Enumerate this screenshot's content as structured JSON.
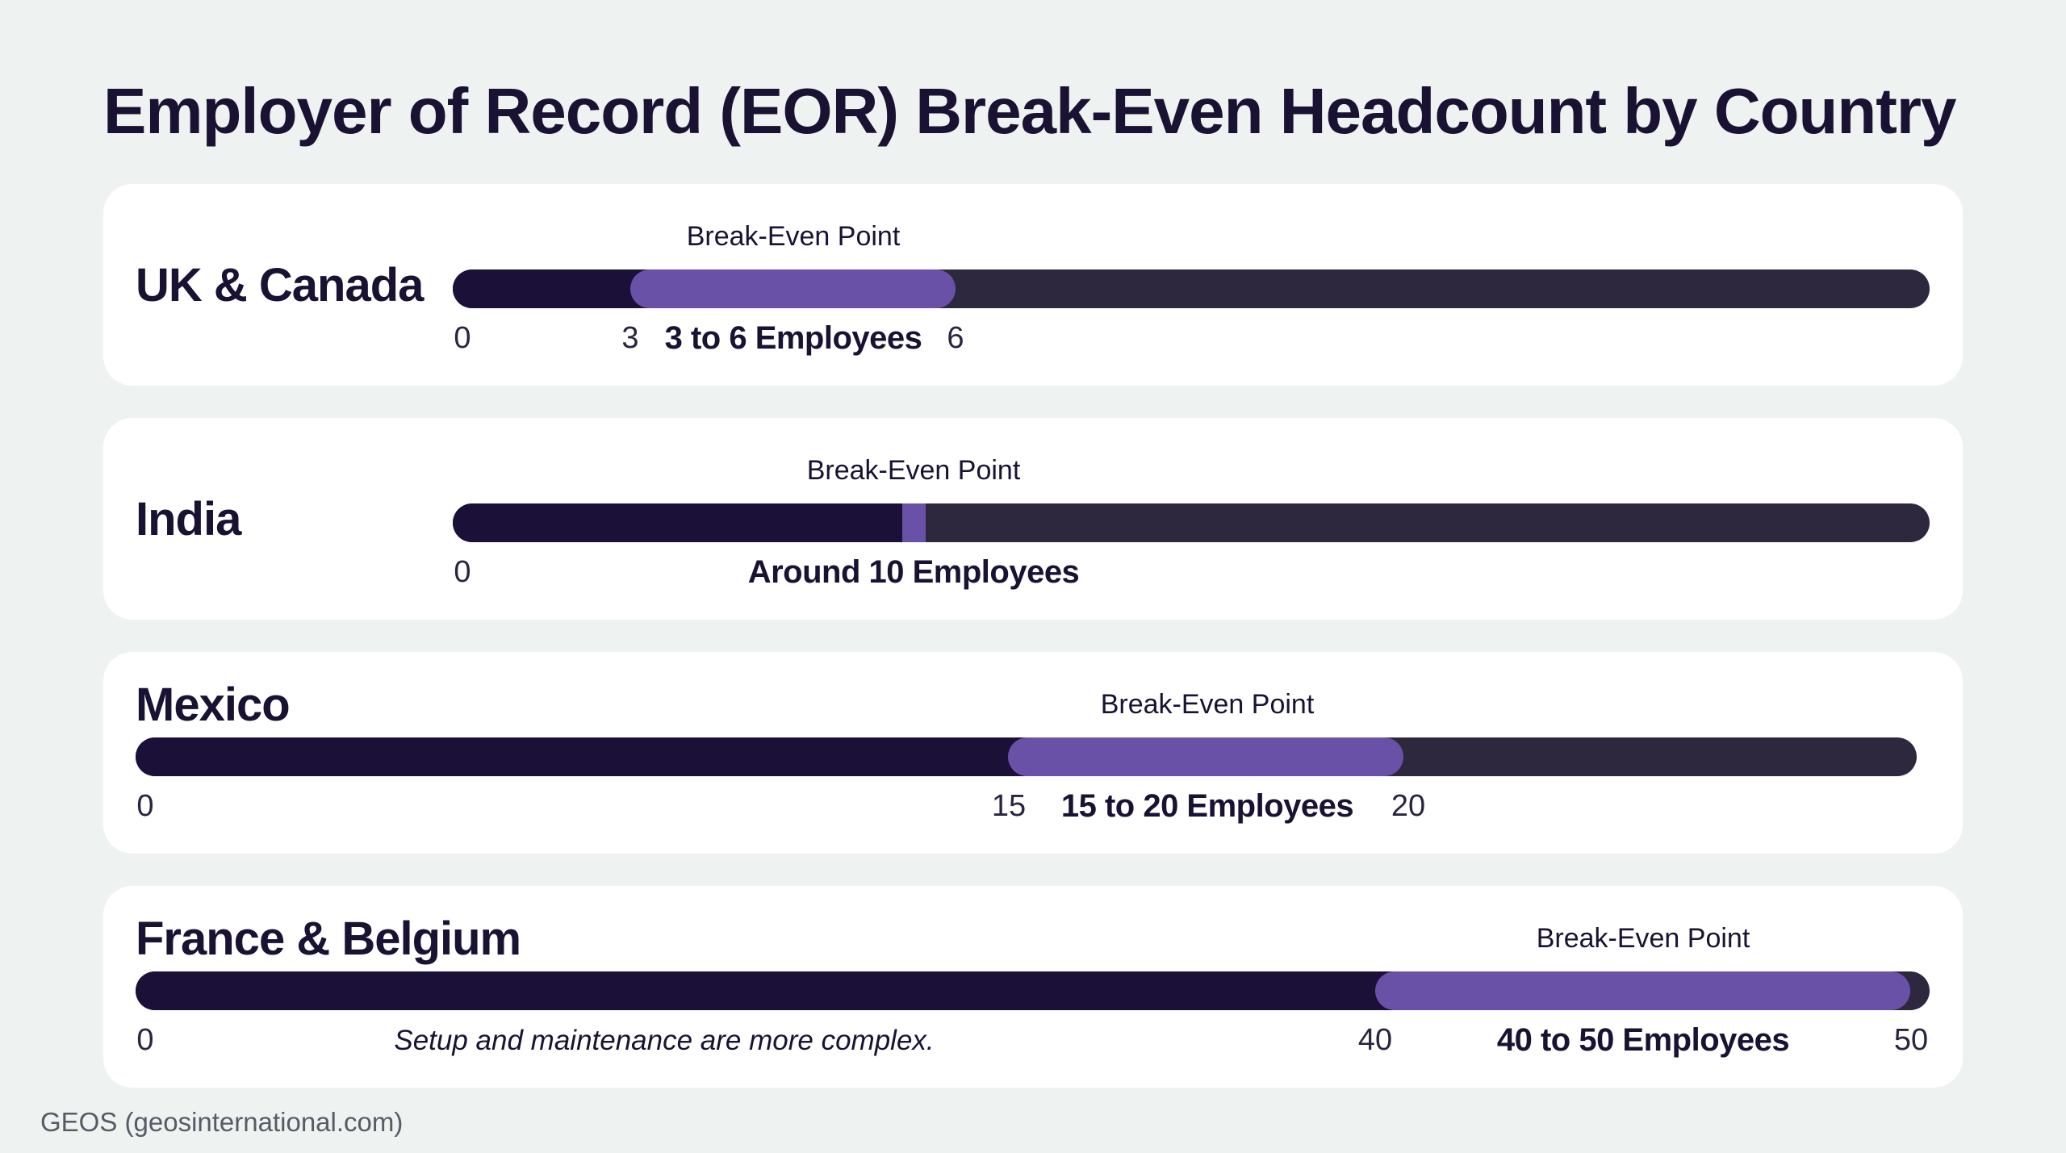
{
  "title": "Employer of Record (EOR) Break-Even Headcount by Country",
  "source": "GEOS (geosinternational.com)",
  "colors": {
    "bar_track": "#2d283e",
    "bar_fill": "#1b1037",
    "break_even_highlight": "#6a51a8",
    "card_background": "#ffffff",
    "page_background": "#eef2f0",
    "text": "#1a1233"
  },
  "chart_data": {
    "type": "range-bar",
    "rows": [
      {
        "name": "UK & Canada",
        "break_even_label": "Break-Even Point",
        "range_label": "3 to 6 Employees",
        "range": [
          3,
          6
        ],
        "ticks": [
          "0",
          "3",
          "6"
        ]
      },
      {
        "name": "India",
        "break_even_label": "Break-Even Point",
        "range_label": "Around 10 Employees",
        "range": [
          10,
          10
        ],
        "ticks": [
          "0"
        ]
      },
      {
        "name": "Mexico",
        "break_even_label": "Break-Even Point",
        "range_label": "15 to 20 Employees",
        "range": [
          15,
          20
        ],
        "ticks": [
          "0",
          "15",
          "20"
        ]
      },
      {
        "name": "France & Belgium",
        "break_even_label": "Break-Even Point",
        "range_label": "40 to 50 Employees",
        "range": [
          40,
          50
        ],
        "ticks": [
          "0",
          "40",
          "50"
        ],
        "note": "Setup and maintenance are more complex."
      }
    ]
  }
}
